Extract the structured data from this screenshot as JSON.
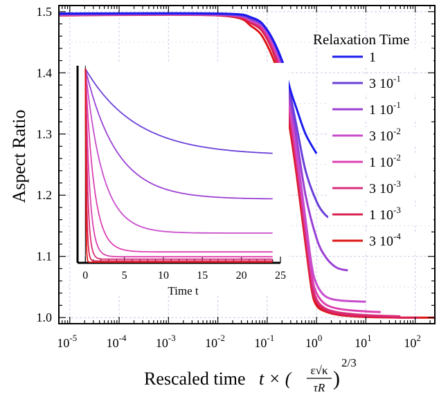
{
  "chart_data": [
    {
      "type": "line",
      "xlabel": "Rescaled time",
      "xlabel_formula": {
        "lhs": "t × (",
        "num": "ε√κ",
        "den": "τR",
        "rhs": ")",
        "exponent": "2/3"
      },
      "ylabel": "Aspect Ratio",
      "x_scale": "log",
      "xlim": [
        6e-06,
        250
      ],
      "ylim": [
        0.99,
        1.51
      ],
      "grid": true,
      "x_ticks": [
        {
          "value": 1e-05,
          "base": "10",
          "exp": "-5"
        },
        {
          "value": 0.0001,
          "base": "10",
          "exp": "-4"
        },
        {
          "value": 0.001,
          "base": "10",
          "exp": "-3"
        },
        {
          "value": 0.01,
          "base": "10",
          "exp": "-2"
        },
        {
          "value": 0.1,
          "base": "10",
          "exp": "-1"
        },
        {
          "value": 1,
          "base": "10",
          "exp": "0"
        },
        {
          "value": 10,
          "base": "10",
          "exp": "1"
        },
        {
          "value": 100,
          "base": "10",
          "exp": "2"
        }
      ],
      "y_ticks": [
        {
          "value": 1.0,
          "label": "1.0"
        },
        {
          "value": 1.1,
          "label": "1.1"
        },
        {
          "value": 1.2,
          "label": "1.2"
        },
        {
          "value": 1.3,
          "label": "1.3"
        },
        {
          "value": 1.4,
          "label": "1.4"
        },
        {
          "value": 1.5,
          "label": "1.5"
        }
      ],
      "legend": {
        "title": "Relaxation Time",
        "placement": "right",
        "entries": [
          {
            "mantissa": "",
            "base": "1",
            "exp": "",
            "color": "#1a1aee"
          },
          {
            "mantissa": "3",
            "base": "10",
            "exp": "-1",
            "color": "#6a3fd9"
          },
          {
            "mantissa": "1",
            "base": "10",
            "exp": "-1",
            "color": "#9a40d4"
          },
          {
            "mantissa": "3",
            "base": "10",
            "exp": "-2",
            "color": "#c84ccc"
          },
          {
            "mantissa": "1",
            "base": "10",
            "exp": "-2",
            "color": "#dc40b0"
          },
          {
            "mantissa": "3",
            "base": "10",
            "exp": "-3",
            "color": "#d82c78"
          },
          {
            "mantissa": "1",
            "base": "10",
            "exp": "-3",
            "color": "#d92050"
          },
          {
            "mantissa": "3",
            "base": "10",
            "exp": "-4",
            "color": "#de1414"
          }
        ]
      },
      "series": [
        {
          "color": "#1a1aee",
          "x": [
            6e-06,
            0.01,
            0.05,
            0.1,
            0.2,
            0.3,
            0.4,
            0.6,
            1.0
          ],
          "y": [
            1.497,
            1.497,
            1.49,
            1.47,
            1.42,
            1.37,
            1.34,
            1.3,
            1.268
          ]
        },
        {
          "color": "#6a3fd9",
          "x": [
            6e-06,
            0.01,
            0.05,
            0.1,
            0.2,
            0.3,
            0.4,
            0.6,
            1.0,
            1.5,
            2.2
          ],
          "y": [
            1.496,
            1.496,
            1.488,
            1.47,
            1.42,
            1.36,
            1.31,
            1.24,
            1.19,
            1.168,
            1.16
          ]
        },
        {
          "color": "#9a40d4",
          "x": [
            6e-06,
            0.01,
            0.05,
            0.1,
            0.2,
            0.3,
            0.4,
            0.6,
            1.0,
            1.5,
            2.5,
            4.3
          ],
          "y": [
            1.496,
            1.496,
            1.487,
            1.468,
            1.415,
            1.35,
            1.29,
            1.2,
            1.13,
            1.1,
            1.082,
            1.077
          ]
        },
        {
          "color": "#c84ccc",
          "x": [
            6e-06,
            0.01,
            0.05,
            0.1,
            0.2,
            0.3,
            0.4,
            0.6,
            0.8,
            1.0,
            1.5,
            3,
            10
          ],
          "y": [
            1.495,
            1.495,
            1.485,
            1.465,
            1.41,
            1.34,
            1.27,
            1.16,
            1.085,
            1.055,
            1.035,
            1.028,
            1.026
          ]
        },
        {
          "color": "#dc40b0",
          "x": [
            6e-06,
            0.01,
            0.05,
            0.1,
            0.2,
            0.3,
            0.4,
            0.6,
            0.8,
            1.0,
            1.5,
            3,
            10,
            20
          ],
          "y": [
            1.495,
            1.495,
            1.484,
            1.463,
            1.405,
            1.33,
            1.26,
            1.15,
            1.07,
            1.04,
            1.022,
            1.014,
            1.01,
            1.009
          ]
        },
        {
          "color": "#d82c78",
          "x": [
            6e-06,
            0.01,
            0.05,
            0.1,
            0.2,
            0.3,
            0.4,
            0.6,
            0.8,
            1.0,
            1.5,
            3,
            10,
            50
          ],
          "y": [
            1.495,
            1.495,
            1.483,
            1.46,
            1.4,
            1.32,
            1.25,
            1.14,
            1.06,
            1.03,
            1.015,
            1.008,
            1.004,
            1.002
          ]
        },
        {
          "color": "#d92050",
          "x": [
            6e-06,
            0.01,
            0.05,
            0.1,
            0.2,
            0.3,
            0.4,
            0.6,
            0.8,
            1.0,
            1.5,
            3,
            10,
            50,
            120
          ],
          "y": [
            1.494,
            1.494,
            1.48,
            1.455,
            1.39,
            1.31,
            1.24,
            1.13,
            1.05,
            1.025,
            1.012,
            1.005,
            1.002,
            1.0,
            1.0
          ]
        },
        {
          "color": "#de1414",
          "x": [
            6e-06,
            0.01,
            0.05,
            0.1,
            0.2,
            0.3,
            0.4,
            0.6,
            0.8,
            1.0,
            1.5,
            3,
            10,
            50,
            250
          ],
          "y": [
            1.494,
            1.494,
            1.475,
            1.445,
            1.38,
            1.3,
            1.23,
            1.12,
            1.045,
            1.02,
            1.01,
            1.004,
            1.001,
            1.0,
            1.0
          ]
        }
      ]
    },
    {
      "type": "line",
      "inset": true,
      "xlabel": "Time t",
      "xlim": [
        -1,
        25
      ],
      "ylim": [
        1.085,
        1.41
      ],
      "x_ticks": [
        {
          "value": 0,
          "label": "0"
        },
        {
          "value": 5,
          "label": "5"
        },
        {
          "value": 10,
          "label": "10"
        },
        {
          "value": 15,
          "label": "15"
        },
        {
          "value": 20,
          "label": "20"
        },
        {
          "value": 25,
          "label": "25"
        }
      ],
      "series": [
        {
          "color": "#6a3fd9",
          "tau": 6.5,
          "final": 1.262
        },
        {
          "color": "#9a40d4",
          "tau": 4.0,
          "final": 1.19
        },
        {
          "color": "#c84ccc",
          "tau": 2.2,
          "final": 1.134
        },
        {
          "color": "#dc40b0",
          "tau": 1.1,
          "final": 1.103
        },
        {
          "color": "#dc40b0",
          "tau": 0.55,
          "final": 1.095
        },
        {
          "color": "#d82c78",
          "tau": 0.3,
          "final": 1.091
        },
        {
          "color": "#d92050",
          "tau": 0.15,
          "final": 1.088
        },
        {
          "color": "#de1414",
          "tau": 0.06,
          "final": 1.086
        }
      ]
    }
  ]
}
